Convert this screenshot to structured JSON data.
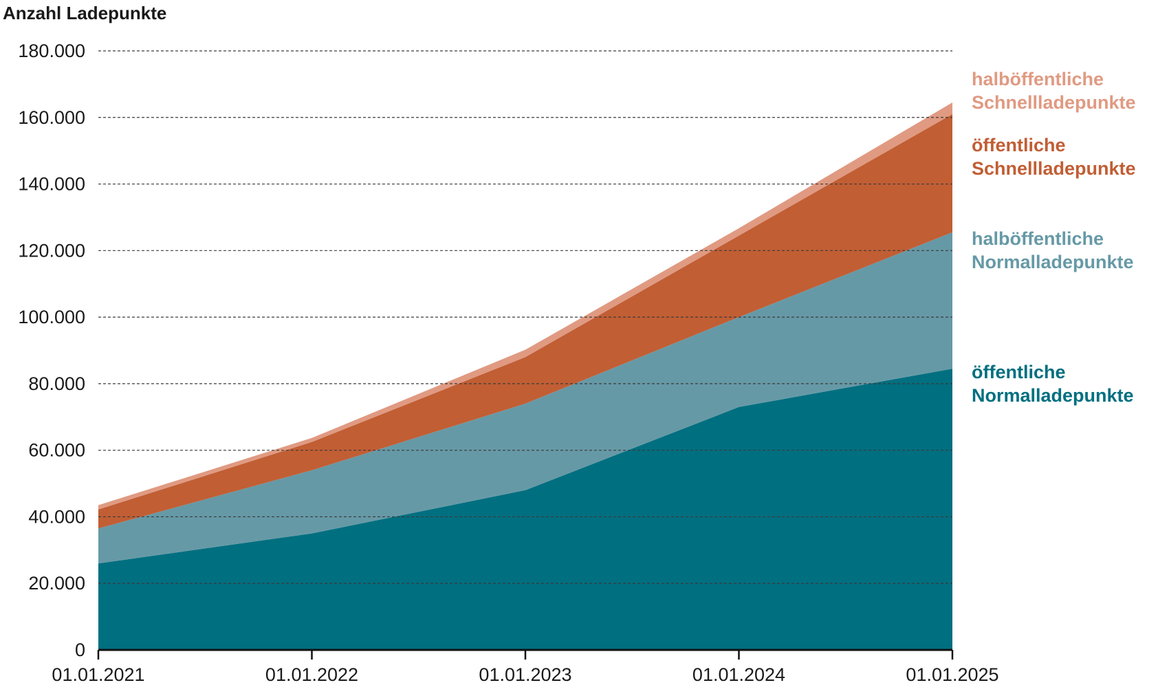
{
  "chart_data": {
    "type": "area",
    "stacked": true,
    "ylabel": "Anzahl Ladepunkte",
    "x": [
      "01.01.2021",
      "01.01.2022",
      "01.01.2023",
      "01.01.2024",
      "01.01.2025"
    ],
    "ylim": [
      0,
      180000
    ],
    "yticks": [
      0,
      20000,
      40000,
      60000,
      80000,
      100000,
      120000,
      140000,
      160000,
      180000
    ],
    "ytick_labels": [
      "0",
      "20.000",
      "40.000",
      "60.000",
      "80.000",
      "100.000",
      "120.000",
      "140.000",
      "160.000",
      "180.000"
    ],
    "grid": true,
    "legend_placement": "right",
    "series": [
      {
        "name": "öffentliche Normalladepunkte",
        "name_lines": [
          "öffentliche",
          "Normalladepunkte"
        ],
        "color": "#006f80",
        "values": [
          26000,
          35000,
          48000,
          73000,
          84500
        ]
      },
      {
        "name": "halböffentliche Normalladepunkte",
        "name_lines": [
          "halböffentliche",
          "Normalladepunkte"
        ],
        "color": "#6699a6",
        "values": [
          10500,
          19000,
          26000,
          27000,
          41000
        ]
      },
      {
        "name": "öffentliche Schnellladepunkte",
        "name_lines": [
          "öffentliche",
          "Schnellladepunkte"
        ],
        "color": "#c15e34",
        "values": [
          5700,
          8500,
          14000,
          24500,
          35500
        ]
      },
      {
        "name": "halböffentliche Schnellladepunkte",
        "name_lines": [
          "halböffentliche",
          "Schnellladepunkte"
        ],
        "color": "#e09a82",
        "values": [
          1300,
          1200,
          2200,
          2200,
          3500
        ]
      }
    ]
  }
}
